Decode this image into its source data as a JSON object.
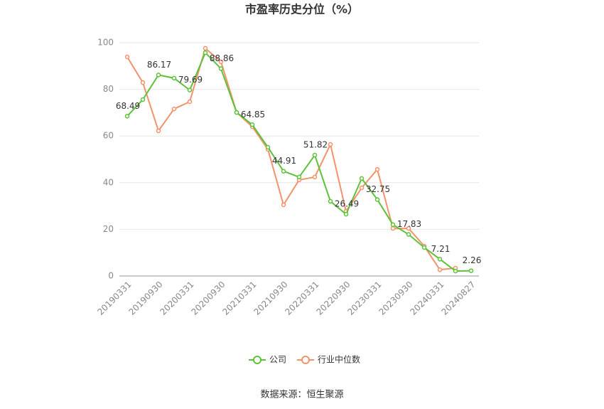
{
  "chart_data": {
    "type": "line",
    "title": "市盈率历史分位（%）",
    "categories": [
      "20190331",
      null,
      "20190930",
      null,
      "20200331",
      null,
      "20200930",
      null,
      "20210331",
      null,
      "20210930",
      null,
      "20220331",
      null,
      "20220930",
      null,
      "20230331",
      null,
      "20230930",
      null,
      "20240331",
      null,
      "20240827"
    ],
    "series": [
      {
        "name": "公司",
        "color": "#5cc23a",
        "values": [
          68.49,
          75.6,
          86.17,
          84.8,
          79.69,
          95.7,
          88.86,
          70.1,
          64.85,
          55.2,
          44.91,
          42.4,
          51.82,
          32,
          26.49,
          41.8,
          32.75,
          22,
          17.83,
          12.2,
          7.21,
          2.1,
          2.26
        ]
      },
      {
        "name": "行业中位数",
        "color": "#f4926b",
        "values": [
          93.9,
          82.9,
          62.2,
          71.6,
          74.7,
          97.6,
          91.8,
          70.1,
          64,
          54.3,
          30.5,
          41.2,
          42.4,
          56.4,
          27.7,
          37.8,
          45.7,
          20.4,
          20.4,
          12.8,
          2.7,
          3.4,
          null
        ]
      }
    ],
    "ylim": [
      0,
      100
    ],
    "yticks": [
      0,
      20,
      40,
      60,
      80,
      100
    ],
    "grid": true,
    "source": "数据来源：恒生聚源"
  }
}
